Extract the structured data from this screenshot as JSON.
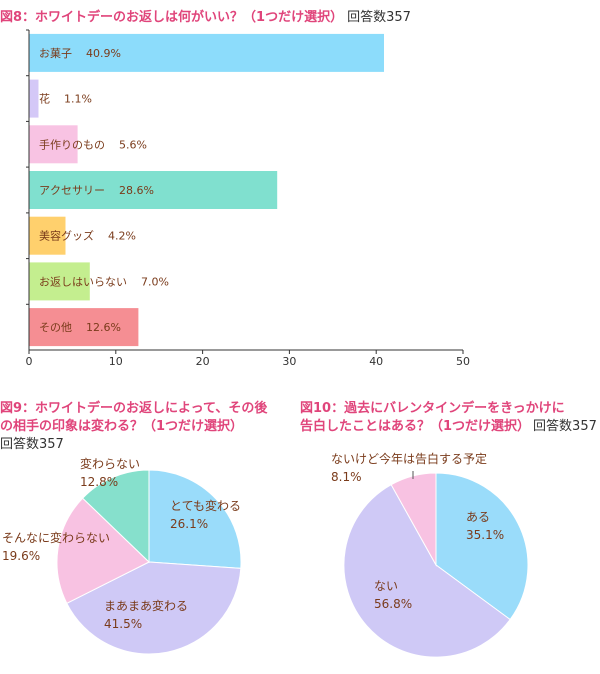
{
  "colors": {
    "title_pink": "#e0457b",
    "label_brown": "#7a3b1b",
    "text_dark": "#333333"
  },
  "chart_data": [
    {
      "type": "bar",
      "orientation": "horizontal",
      "title_prefix": "図8：",
      "title": "ホワイトデーのお返しは何がいい？（1つだけ選択）",
      "respondents": "回答数357",
      "categories": [
        "お菓子",
        "花",
        "手作りのもの",
        "アクセサリー",
        "美容グッズ",
        "お返しはいらない",
        "その他"
      ],
      "values": [
        40.9,
        1.1,
        5.6,
        28.6,
        4.2,
        7.0,
        12.6
      ],
      "value_labels": [
        "40.9%",
        "1.1%",
        "5.6%",
        "28.6%",
        "4.2%",
        "7.0%",
        "12.6%"
      ],
      "colors": [
        "#8cdcfb",
        "#d4c8f7",
        "#f8c3e3",
        "#80e0cf",
        "#ffd06d",
        "#c4ee8f",
        "#f58e93"
      ],
      "xlim": [
        0,
        50
      ],
      "xticks": [
        "0",
        "10",
        "20",
        "30",
        "40",
        "50"
      ]
    },
    {
      "type": "pie",
      "title_prefix": "図9：",
      "title_line1": "ホワイトデーのお返しによって、その後",
      "title_line2": "の相手の印象は変わる？（1つだけ選択）",
      "respondents": "回答数357",
      "labels": [
        "とても変わる",
        "まあまあ変わる",
        "そんなに変わらない",
        "変わらない"
      ],
      "values": [
        26.1,
        41.5,
        19.6,
        12.8
      ],
      "value_labels": [
        "26.1%",
        "41.5%",
        "19.6%",
        "12.8%"
      ],
      "colors": [
        "#9adcfa",
        "#cfc9f6",
        "#f8c2e2",
        "#86e0cc"
      ]
    },
    {
      "type": "pie",
      "title_prefix": "図10：",
      "title_line1": "過去にバレンタインデーをきっかけに",
      "title_line2": "告白したことはある？（1つだけ選択）",
      "respondents": "回答数357",
      "labels": [
        "ある",
        "ない",
        "ないけど今年は告白する予定"
      ],
      "values": [
        35.1,
        56.8,
        8.1
      ],
      "value_labels": [
        "35.1%",
        "56.8%",
        "8.1%"
      ],
      "colors": [
        "#9adcfa",
        "#cfc9f6",
        "#f8c2e2"
      ]
    }
  ]
}
